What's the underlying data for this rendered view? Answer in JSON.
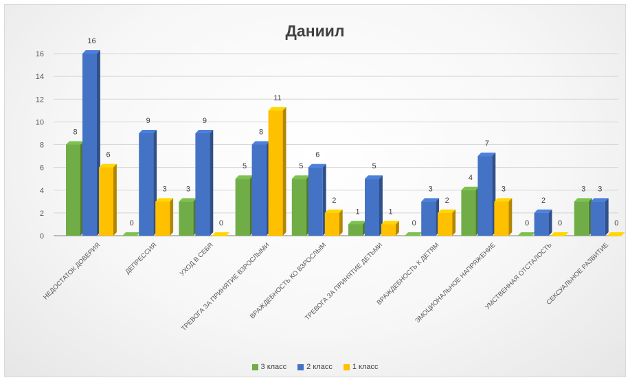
{
  "chart_data": {
    "type": "bar",
    "title": "Даниил",
    "categories": [
      "НЕДОСТАТОК ДОВЕРИЯ",
      "ДЕПРЕССИЯ",
      "УХОД В СЕБЯ",
      "ТРЕВОГА ЗА ПРИНЯТИЕ ВЗРОСЛЫМИ",
      "ВРАЖДЕБНОСТЬ КО ВЗРОСЛЫМ",
      "ТРЕВОГА ЗА ПРИНЯТИЕ ДЕТЬМИ",
      "ВРАЖДЕБНОСТЬ К ДЕТЯМ",
      "ЭМОЦИОНАЛЬНОЕ НАПРЯЖЕНИЕ",
      "УМСТВЕННАЯ ОТСТАЛОСТЬ",
      "СЕКСУАЛЬНОЕ РАЗВИТИЕ"
    ],
    "series": [
      {
        "name": "3 класс",
        "color": "#70ad47",
        "values": [
          8,
          0,
          3,
          5,
          5,
          1,
          0,
          4,
          0,
          3
        ]
      },
      {
        "name": "2 класс",
        "color": "#4472c4",
        "values": [
          16,
          9,
          9,
          8,
          6,
          5,
          3,
          7,
          2,
          3
        ]
      },
      {
        "name": "1 класс",
        "color": "#ffc000",
        "values": [
          6,
          3,
          0,
          11,
          2,
          1,
          2,
          3,
          0,
          0
        ]
      }
    ],
    "yticks": [
      0,
      2,
      4,
      6,
      8,
      10,
      12,
      14,
      16
    ],
    "ylim": [
      0,
      16
    ],
    "grid": true,
    "legend_position": "bottom",
    "data_labels": true,
    "bar_style": "3d"
  }
}
